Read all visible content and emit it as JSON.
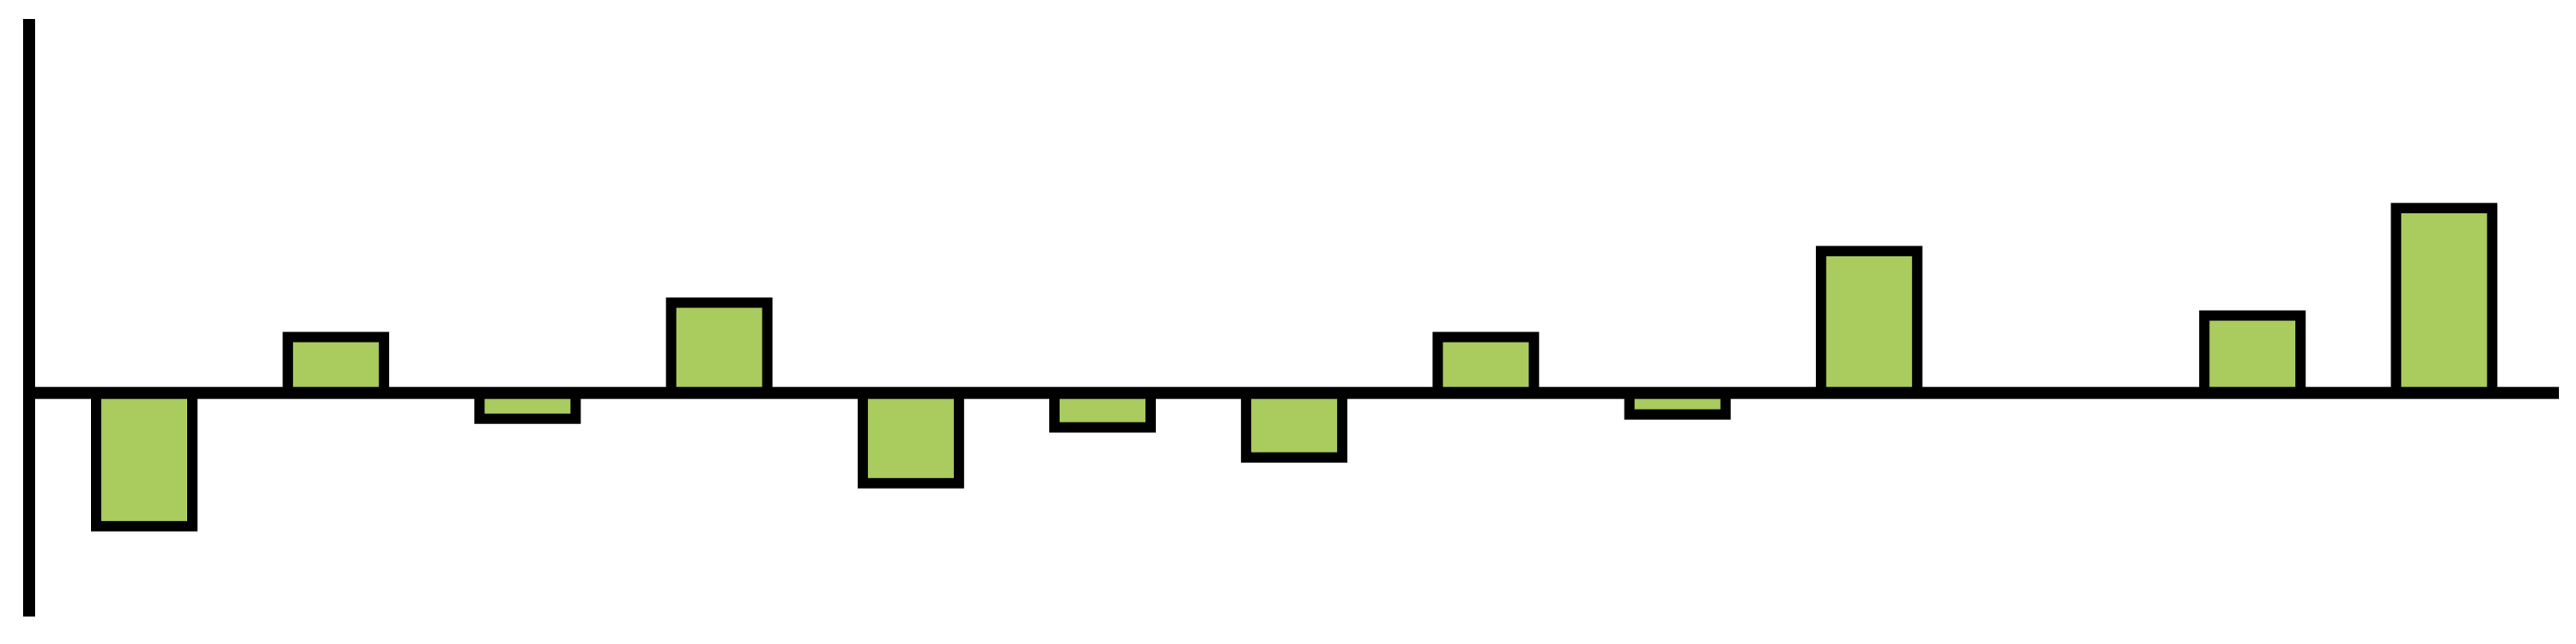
{
  "chart_data": {
    "type": "bar",
    "title": "",
    "xlabel": "",
    "ylabel": "",
    "categories": [
      "",
      "",
      "",
      "",
      "",
      "",
      "",
      "",
      "",
      "",
      "",
      "",
      ""
    ],
    "values": [
      -31,
      13,
      -6,
      21,
      -21,
      -8,
      -15,
      13,
      -5,
      33,
      0,
      18,
      43
    ],
    "ylim": [
      -52,
      87
    ],
    "grid": false,
    "colors": {
      "bar_fill": "#aacc5e",
      "stroke": "#000000",
      "background": "#ffffff"
    }
  }
}
